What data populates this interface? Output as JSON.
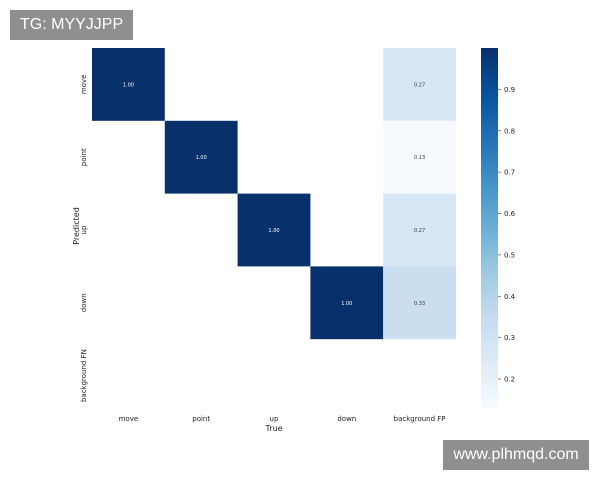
{
  "chart_data": {
    "type": "heatmap",
    "title": "",
    "xlabel": "True",
    "ylabel": "Predicted",
    "x_categories": [
      "move",
      "point",
      "up",
      "down",
      "background FP"
    ],
    "y_categories": [
      "move",
      "point",
      "up",
      "down",
      "background FN"
    ],
    "values": [
      [
        1.0,
        null,
        null,
        null,
        0.27
      ],
      [
        null,
        1.0,
        null,
        null,
        0.13
      ],
      [
        null,
        null,
        1.0,
        null,
        0.27
      ],
      [
        null,
        null,
        null,
        1.0,
        0.33
      ],
      [
        null,
        null,
        null,
        null,
        null
      ]
    ],
    "colorbar": {
      "range": [
        0.13,
        1.0
      ],
      "ticks": [
        "0.2",
        "0.3",
        "0.4",
        "0.5",
        "0.6",
        "0.7",
        "0.8",
        "0.9"
      ],
      "colormap": "Blues",
      "low_color": "#f7fbff",
      "high_color": "#08306b"
    },
    "grid": false,
    "legend": "colorbar-right"
  },
  "watermarks": {
    "top_left": "TG: MYYJJPP",
    "bottom_right": "www.plhmqd.com"
  }
}
